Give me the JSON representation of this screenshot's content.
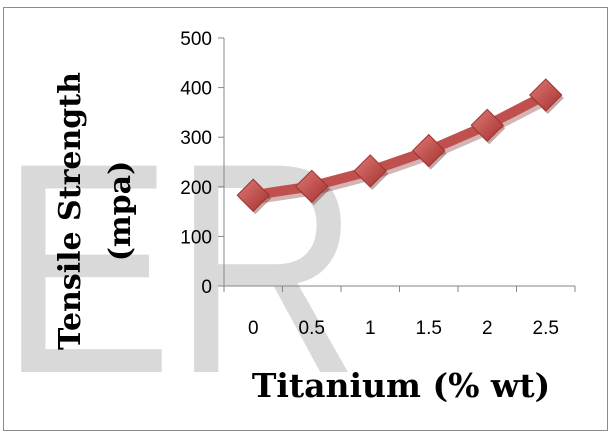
{
  "watermark": {
    "text": "ER",
    "color": "#d9d9d9"
  },
  "chart_data": {
    "type": "line",
    "title": "",
    "xlabel": "Titanium (% wt)",
    "ylabel_lines": [
      "Tensile Strength",
      "(mpa)"
    ],
    "x": [
      0,
      0.5,
      1,
      1.5,
      2,
      2.5
    ],
    "x_tick_labels": [
      "0",
      "0.5",
      "1",
      "1.5",
      "2",
      "2.5"
    ],
    "ylim": [
      0,
      500
    ],
    "y_ticks": [
      0,
      100,
      200,
      300,
      400,
      500
    ],
    "series": [
      {
        "values": [
          183,
          201,
          232,
          273,
          324,
          385
        ]
      }
    ],
    "marker": "diamond",
    "line_color": "#c0504d",
    "marker_color": "#c0504d",
    "grid": false,
    "legend": "none"
  }
}
